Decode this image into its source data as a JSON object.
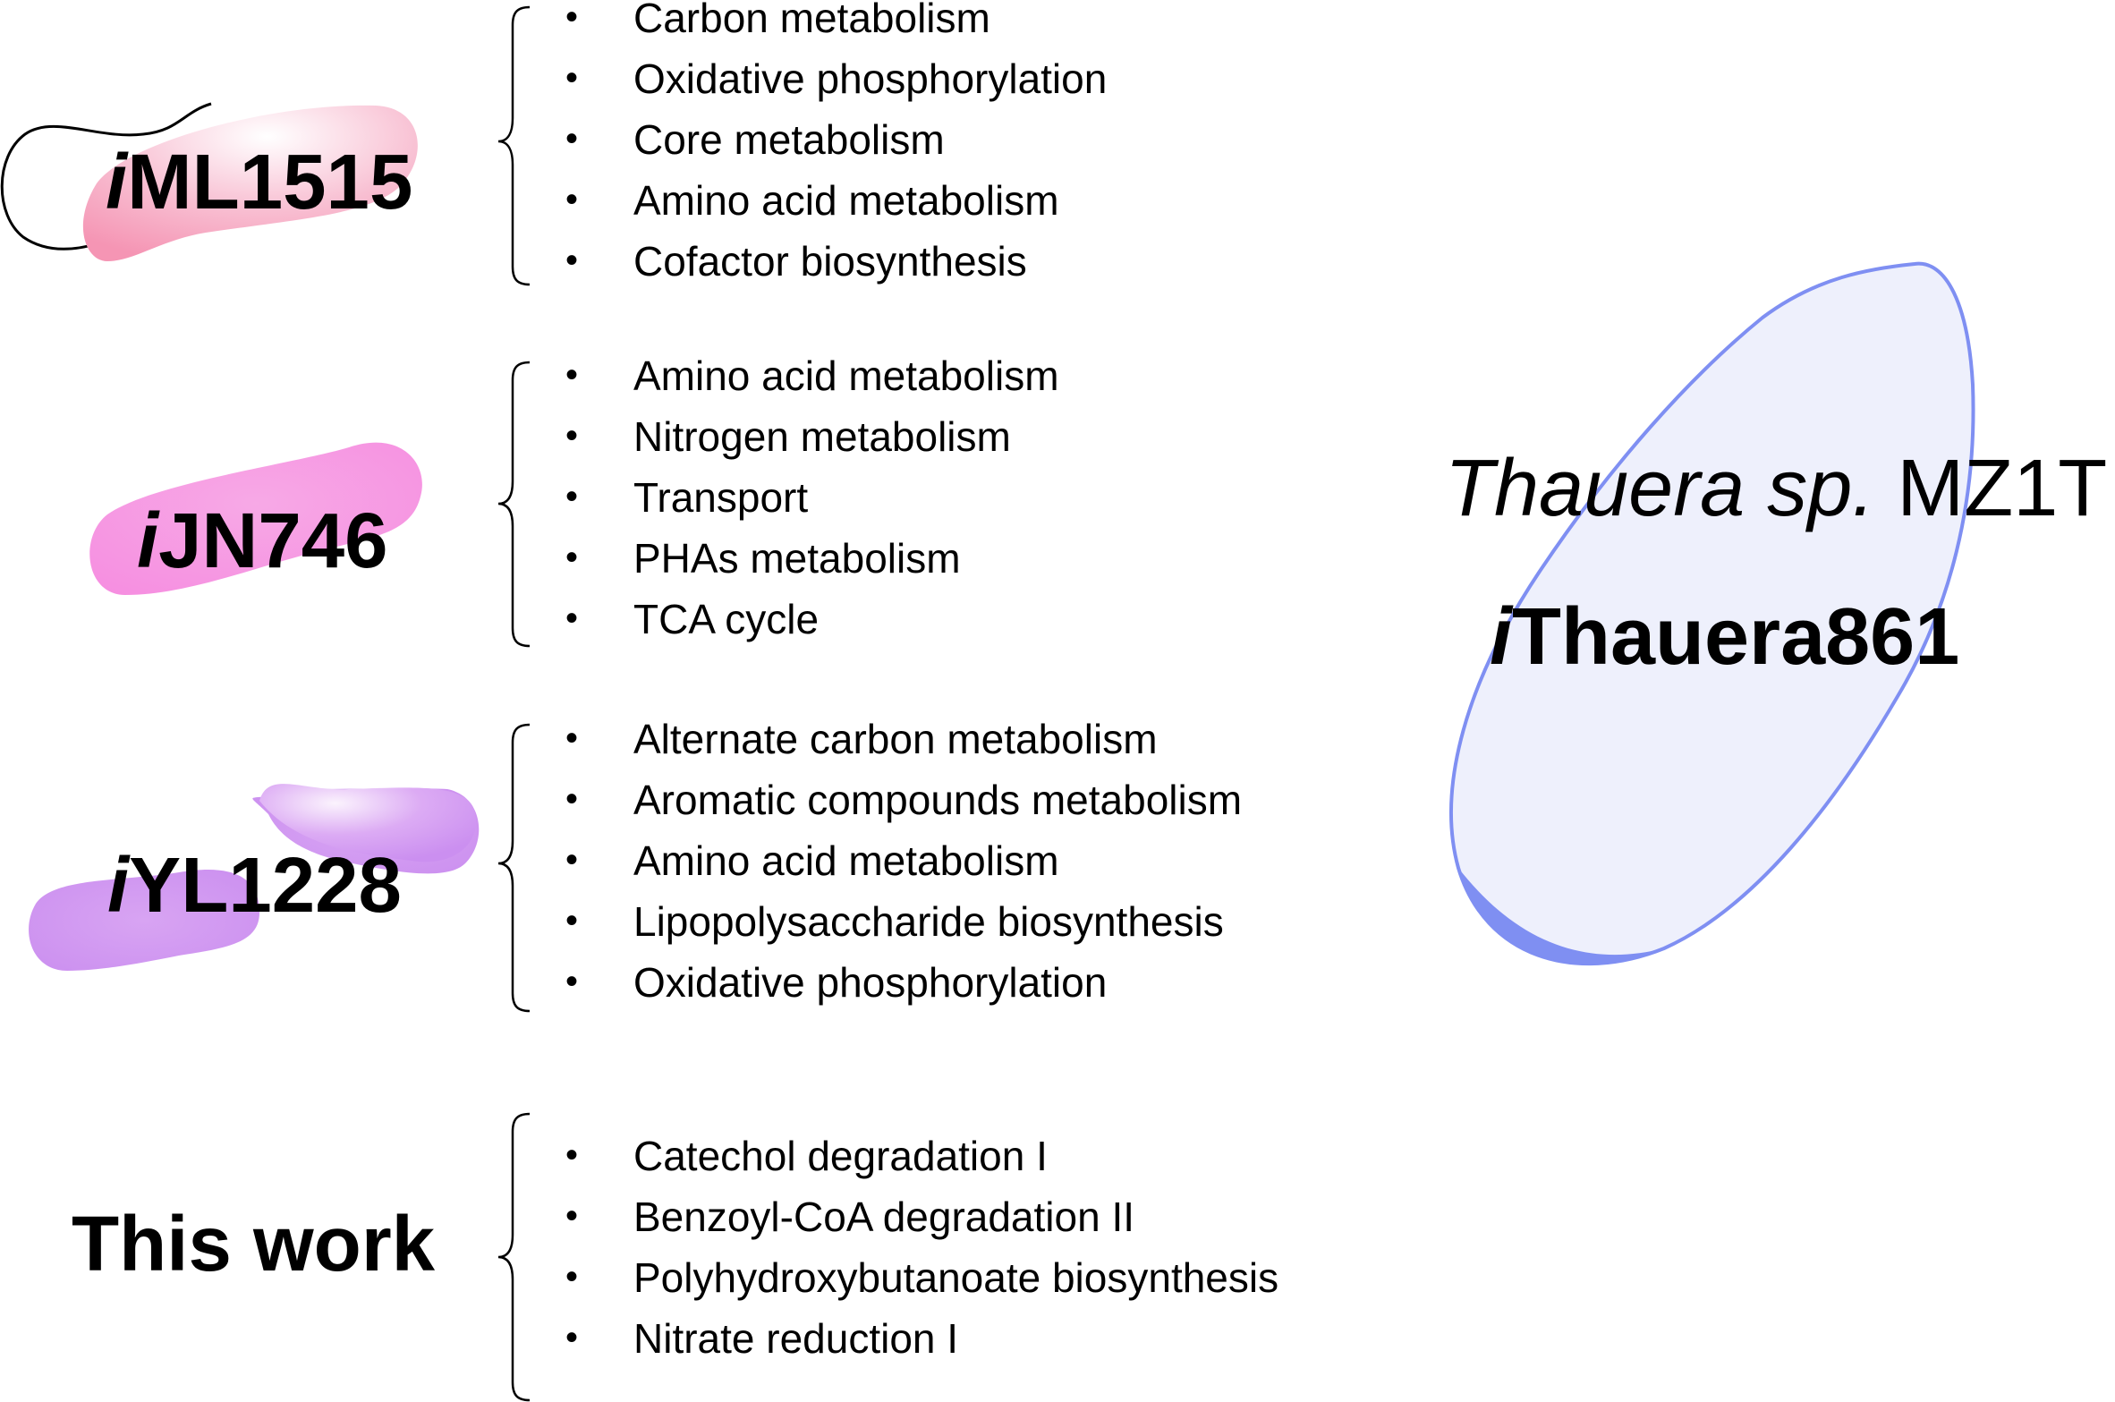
{
  "colors": {
    "iml1515_fill": "#f59ab7",
    "ijn746_fill": "#f68fe0",
    "iyl1228_fill": "#d092f1",
    "thauera_fill": "#eef0fc",
    "thauera_stroke": "#7f8ff2"
  },
  "groups": [
    {
      "model_prefix": "i",
      "model_suffix": "ML1515",
      "items": [
        "Carbon metabolism",
        "Oxidative phosphorylation",
        "Core metabolism",
        "Amino acid metabolism",
        "Cofactor biosynthesis"
      ]
    },
    {
      "model_prefix": "i",
      "model_suffix": "JN746",
      "items": [
        "Amino acid metabolism",
        "Nitrogen metabolism",
        "Transport",
        "PHAs metabolism",
        "TCA cycle"
      ]
    },
    {
      "model_prefix": "i",
      "model_suffix": "YL1228",
      "items": [
        "Alternate carbon metabolism",
        "Aromatic compounds metabolism",
        "Amino acid metabolism",
        "Lipopolysaccharide biosynthesis",
        "Oxidative phosphorylation"
      ]
    },
    {
      "label": "This work",
      "items": [
        "Catechol degradation I",
        "Benzoyl-CoA degradation II",
        "Polyhydroxybutanoate biosynthesis",
        "Nitrate reduction I"
      ]
    }
  ],
  "bullet": "•",
  "organism": {
    "name_italic": "Thauera sp.",
    "strain": "MZ1T",
    "model_prefix": "i",
    "model_suffix": "Thauera861"
  }
}
